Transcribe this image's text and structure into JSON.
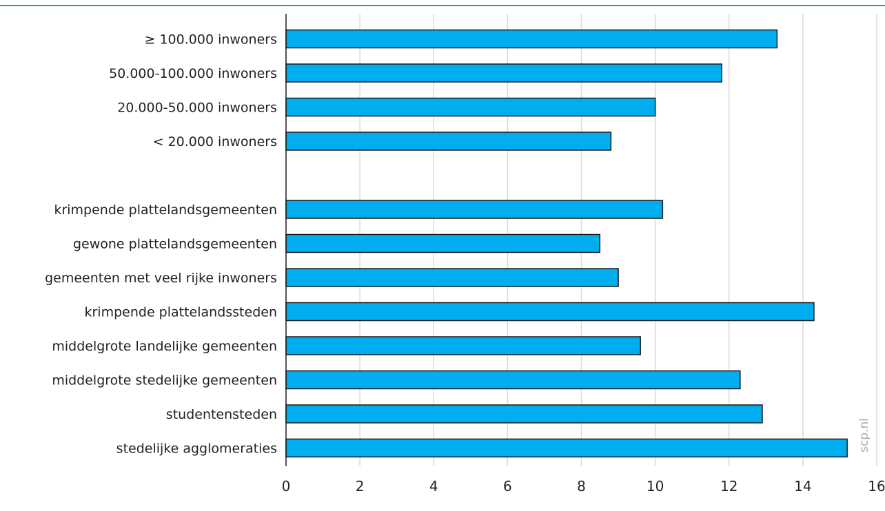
{
  "chart_data": {
    "type": "bar",
    "orientation": "horizontal",
    "categories": [
      "≥ 100.000 inwoners",
      "50.000-100.000 inwoners",
      "20.000-50.000 inwoners",
      "< 20.000 inwoners",
      "",
      "krimpende plattelandsgemeenten",
      "gewone plattelandsgemeenten",
      "gemeenten met veel rijke inwoners",
      "krimpende plattelandssteden",
      "middelgrote landelijke gemeenten",
      "middelgrote stedelijke gemeenten",
      "studentensteden",
      "stedelijke agglomeraties"
    ],
    "values": [
      13.3,
      11.8,
      10.0,
      8.8,
      null,
      10.2,
      8.5,
      9.0,
      14.3,
      9.6,
      12.3,
      12.9,
      15.2
    ],
    "xlim": [
      0,
      16
    ],
    "xticks": [
      "0",
      "2",
      "4",
      "6",
      "8",
      "10",
      "12",
      "14",
      "16"
    ],
    "title": "",
    "xlabel": "",
    "ylabel": "",
    "grid": "vertical",
    "colors": {
      "bar": "#00aeef",
      "bar_stroke": "#1a1a1a",
      "grid": "#d9d9d9",
      "accent_rule": "#00a6e0"
    }
  },
  "watermark": "scp.nl"
}
